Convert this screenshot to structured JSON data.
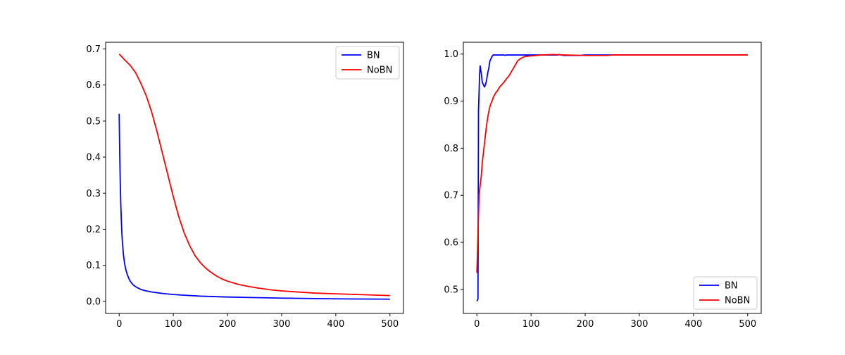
{
  "chart_data": [
    {
      "type": "line",
      "title": "",
      "xlabel": "",
      "ylabel": "",
      "xlim": [
        -25,
        525
      ],
      "ylim": [
        -0.0335,
        0.7185
      ],
      "xticks": [
        0,
        100,
        200,
        300,
        400,
        500
      ],
      "yticks": [
        0.0,
        0.1,
        0.2,
        0.3,
        0.4,
        0.5,
        0.6,
        0.7
      ],
      "xtick_labels": [
        "0",
        "100",
        "200",
        "300",
        "400",
        "500"
      ],
      "ytick_labels": [
        "0.0",
        "0.1",
        "0.2",
        "0.3",
        "0.4",
        "0.5",
        "0.6",
        "0.7"
      ],
      "grid": false,
      "legend_position": "upper right",
      "series": [
        {
          "name": "BN",
          "color": "#0000ff",
          "points": [
            [
              0,
              0.52
            ],
            [
              1,
              0.41
            ],
            [
              2,
              0.33
            ],
            [
              3,
              0.27
            ],
            [
              4,
              0.225
            ],
            [
              5,
              0.19
            ],
            [
              6,
              0.163
            ],
            [
              8,
              0.128
            ],
            [
              10,
              0.105
            ],
            [
              12,
              0.09
            ],
            [
              15,
              0.074
            ],
            [
              18,
              0.063
            ],
            [
              20,
              0.057
            ],
            [
              25,
              0.047
            ],
            [
              30,
              0.041
            ],
            [
              35,
              0.037
            ],
            [
              40,
              0.033
            ],
            [
              50,
              0.029
            ],
            [
              60,
              0.026
            ],
            [
              70,
              0.024
            ],
            [
              80,
              0.022
            ],
            [
              100,
              0.019
            ],
            [
              120,
              0.017
            ],
            [
              150,
              0.0145
            ],
            [
              200,
              0.012
            ],
            [
              250,
              0.0105
            ],
            [
              300,
              0.009
            ],
            [
              350,
              0.008
            ],
            [
              400,
              0.007
            ],
            [
              450,
              0.0065
            ],
            [
              500,
              0.006
            ]
          ]
        },
        {
          "name": "NoBN",
          "color": "#ff0000",
          "points": [
            [
              0,
              0.686
            ],
            [
              10,
              0.67
            ],
            [
              20,
              0.655
            ],
            [
              30,
              0.635
            ],
            [
              40,
              0.605
            ],
            [
              50,
              0.57
            ],
            [
              60,
              0.525
            ],
            [
              70,
              0.47
            ],
            [
              80,
              0.41
            ],
            [
              90,
              0.35
            ],
            [
              100,
              0.29
            ],
            [
              110,
              0.235
            ],
            [
              120,
              0.19
            ],
            [
              130,
              0.155
            ],
            [
              140,
              0.127
            ],
            [
              150,
              0.107
            ],
            [
              160,
              0.092
            ],
            [
              170,
              0.08
            ],
            [
              180,
              0.07
            ],
            [
              190,
              0.062
            ],
            [
              200,
              0.056
            ],
            [
              220,
              0.047
            ],
            [
              240,
              0.041
            ],
            [
              260,
              0.036
            ],
            [
              280,
              0.032
            ],
            [
              300,
              0.029
            ],
            [
              330,
              0.026
            ],
            [
              360,
              0.023
            ],
            [
              400,
              0.021
            ],
            [
              450,
              0.0185
            ],
            [
              500,
              0.016
            ]
          ]
        }
      ]
    },
    {
      "type": "line",
      "title": "",
      "xlabel": "",
      "ylabel": "",
      "xlim": [
        -25,
        525
      ],
      "ylim": [
        0.449,
        1.025
      ],
      "xticks": [
        0,
        100,
        200,
        300,
        400,
        500
      ],
      "yticks": [
        0.5,
        0.6,
        0.7,
        0.8,
        0.9,
        1.0
      ],
      "xtick_labels": [
        "0",
        "100",
        "200",
        "300",
        "400",
        "500"
      ],
      "ytick_labels": [
        "0.5",
        "0.6",
        "0.7",
        "0.8",
        "0.9",
        "1.0"
      ],
      "grid": false,
      "legend_position": "lower right",
      "series": [
        {
          "name": "BN",
          "color": "#0000ff",
          "points": [
            [
              0,
              0.475
            ],
            [
              2,
              0.48
            ],
            [
              3,
              0.88
            ],
            [
              5,
              0.955
            ],
            [
              6,
              0.975
            ],
            [
              8,
              0.96
            ],
            [
              10,
              0.94
            ],
            [
              12,
              0.935
            ],
            [
              14,
              0.93
            ],
            [
              16,
              0.935
            ],
            [
              18,
              0.945
            ],
            [
              20,
              0.96
            ],
            [
              22,
              0.97
            ],
            [
              24,
              0.985
            ],
            [
              26,
              0.99
            ],
            [
              28,
              0.995
            ],
            [
              30,
              0.998
            ],
            [
              40,
              0.998
            ],
            [
              50,
              0.998
            ],
            [
              52,
              0.997
            ],
            [
              54,
              0.998
            ],
            [
              150,
              0.998
            ],
            [
              152,
              0.999
            ],
            [
              160,
              0.997
            ],
            [
              190,
              0.997
            ],
            [
              200,
              0.998
            ],
            [
              500,
              0.998
            ]
          ]
        },
        {
          "name": "NoBN",
          "color": "#ff0000",
          "points": [
            [
              0,
              0.535
            ],
            [
              2,
              0.62
            ],
            [
              4,
              0.7
            ],
            [
              6,
              0.72
            ],
            [
              8,
              0.74
            ],
            [
              10,
              0.77
            ],
            [
              12,
              0.79
            ],
            [
              14,
              0.81
            ],
            [
              16,
              0.83
            ],
            [
              18,
              0.85
            ],
            [
              20,
              0.865
            ],
            [
              22,
              0.878
            ],
            [
              24,
              0.888
            ],
            [
              26,
              0.895
            ],
            [
              28,
              0.9
            ],
            [
              30,
              0.907
            ],
            [
              32,
              0.912
            ],
            [
              35,
              0.918
            ],
            [
              38,
              0.922
            ],
            [
              42,
              0.93
            ],
            [
              46,
              0.935
            ],
            [
              50,
              0.94
            ],
            [
              55,
              0.948
            ],
            [
              60,
              0.955
            ],
            [
              65,
              0.965
            ],
            [
              70,
              0.975
            ],
            [
              75,
              0.985
            ],
            [
              80,
              0.99
            ],
            [
              85,
              0.993
            ],
            [
              90,
              0.995
            ],
            [
              100,
              0.996
            ],
            [
              110,
              0.997
            ],
            [
              120,
              0.998
            ],
            [
              140,
              0.999
            ],
            [
              160,
              0.998
            ],
            [
              200,
              0.997
            ],
            [
              240,
              0.997
            ],
            [
              250,
              0.998
            ],
            [
              500,
              0.998
            ]
          ]
        }
      ]
    }
  ]
}
